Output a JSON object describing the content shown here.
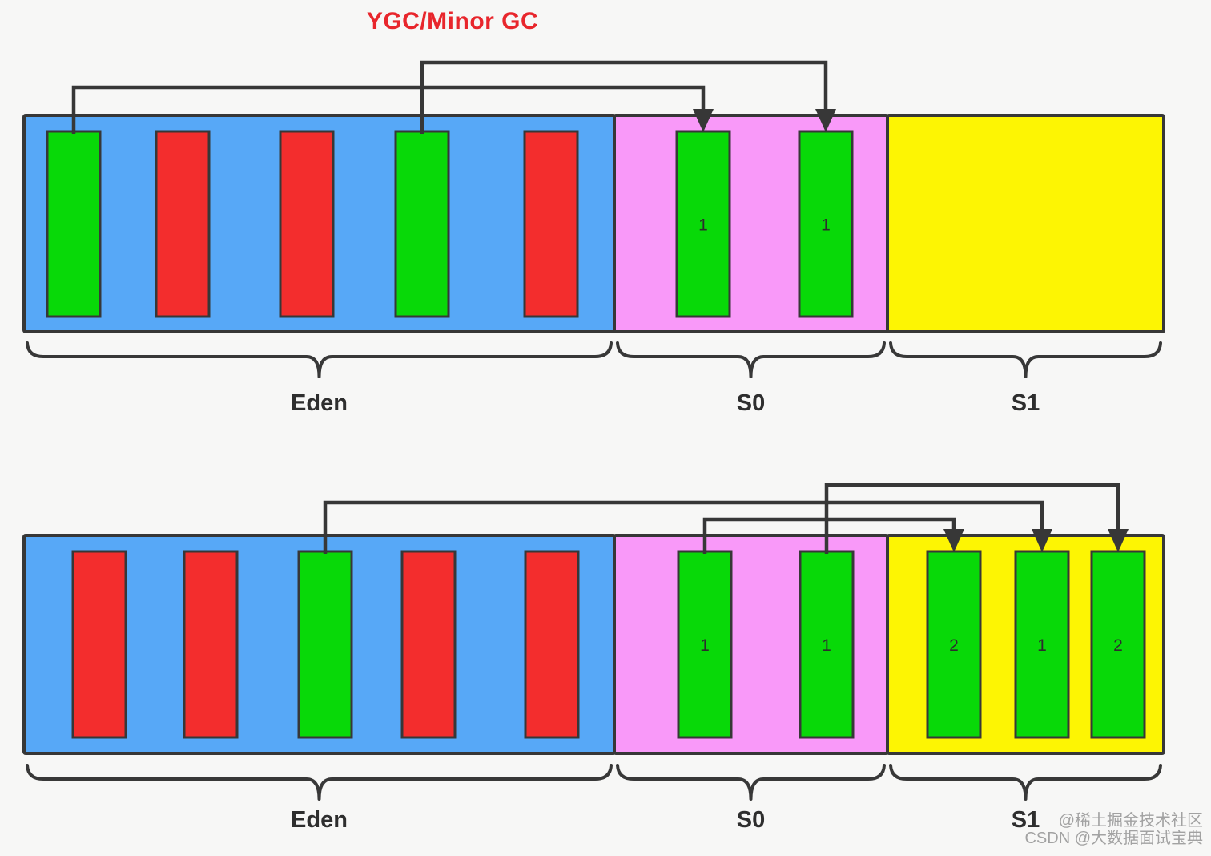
{
  "title": "YGC/Minor GC",
  "watermark": {
    "line1": "@稀土掘金技术社区",
    "line2": "CSDN @大数据面试宝典"
  },
  "colors": {
    "eden_fill": "#57a8f7",
    "s0_fill": "#f999f9",
    "s1_fill": "#fdf503",
    "green": "#08d908",
    "red": "#f32d2d",
    "outline": "#373737",
    "title": "#e8262c",
    "label": "#2e2e2e",
    "watermark": "#a2a2a2"
  },
  "diagrams": [
    {
      "name": "before-ygc",
      "regions": [
        {
          "id": "eden",
          "label": "Eden",
          "bars": [
            {
              "color": "green",
              "label": ""
            },
            {
              "color": "red",
              "label": ""
            },
            {
              "color": "red",
              "label": ""
            },
            {
              "color": "green",
              "label": ""
            },
            {
              "color": "red",
              "label": ""
            }
          ]
        },
        {
          "id": "s0",
          "label": "S0",
          "bars": [
            {
              "color": "green",
              "label": "1"
            },
            {
              "color": "green",
              "label": "1"
            }
          ]
        },
        {
          "id": "s1",
          "label": "S1",
          "bars": []
        }
      ],
      "arrows": [
        {
          "from": "eden.0",
          "to": "s0.0"
        },
        {
          "from": "eden.3",
          "to": "s0.1"
        }
      ]
    },
    {
      "name": "after-ygc",
      "regions": [
        {
          "id": "eden",
          "label": "Eden",
          "bars": [
            {
              "color": "red",
              "label": ""
            },
            {
              "color": "red",
              "label": ""
            },
            {
              "color": "green",
              "label": ""
            },
            {
              "color": "red",
              "label": ""
            },
            {
              "color": "red",
              "label": ""
            }
          ]
        },
        {
          "id": "s0",
          "label": "S0",
          "bars": [
            {
              "color": "green",
              "label": "1"
            },
            {
              "color": "green",
              "label": "1"
            }
          ]
        },
        {
          "id": "s1",
          "label": "S1",
          "bars": [
            {
              "color": "green",
              "label": "2"
            },
            {
              "color": "green",
              "label": "1"
            },
            {
              "color": "green",
              "label": "2"
            }
          ]
        }
      ],
      "arrows": [
        {
          "from": "s0.1",
          "to": "s1.2"
        },
        {
          "from": "eden.2",
          "to": "s1.1"
        },
        {
          "from": "s0.0",
          "to": "s1.0"
        }
      ]
    }
  ]
}
